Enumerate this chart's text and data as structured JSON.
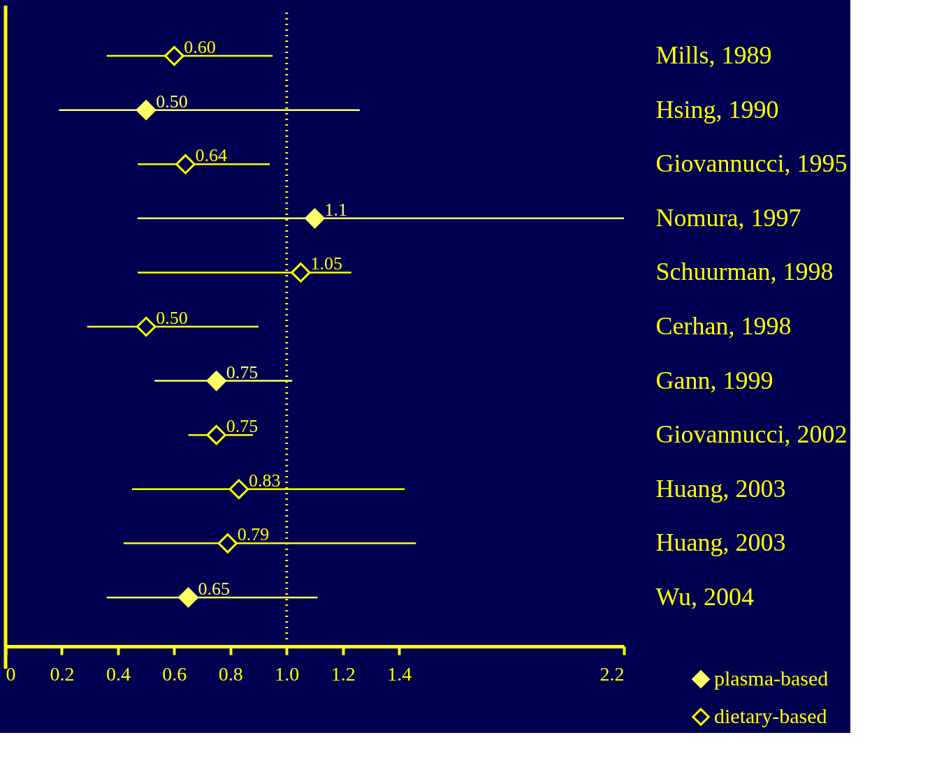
{
  "chart_data": {
    "type": "scatter",
    "orientation": "horizontal",
    "marker": "diamond",
    "legend": "bottom right",
    "grid": false,
    "categories": [
      "Mills, 1989",
      "Hsing, 1990",
      "Giovannucci, 1995",
      "Nomura, 1997",
      "Schuurman, 1998",
      "Cerhan, 1998",
      "Gann, 1999",
      "Giovannucci, 2002",
      "Huang, 2003",
      "Huang, 2003",
      "Wu, 2004"
    ],
    "xlim": [
      0,
      2.2
    ],
    "xticks": [
      0,
      0.2,
      0.4,
      0.6,
      0.8,
      {
        "value": 1,
        "label": "1.0"
      },
      1.2,
      1.4,
      2.2
    ],
    "ref_lines": [
      {
        "axis": "x",
        "value": 1,
        "color": "#ffff00",
        "line_style": "dotted"
      }
    ],
    "series": [
      {
        "name": "plasma-based",
        "color": "#ffff66",
        "values": [
          null,
          0.5,
          null,
          1.1,
          null,
          null,
          0.75,
          null,
          null,
          null,
          0.65
        ],
        "errors": [
          null,
          [
            0.19,
            1.26
          ],
          null,
          [
            0.47,
            2.2
          ],
          null,
          null,
          [
            0.53,
            1.02
          ],
          null,
          null,
          null,
          [
            0.36,
            1.11
          ]
        ],
        "value_labels": [
          null,
          "0.50",
          null,
          "1.1",
          null,
          null,
          "0.75",
          null,
          null,
          null,
          "0.65"
        ]
      },
      {
        "name": "dietary-based",
        "color": "#ffff00",
        "values": [
          0.6,
          null,
          0.64,
          null,
          1.05,
          0.5,
          null,
          0.75,
          0.83,
          0.79,
          null
        ],
        "errors": [
          [
            0.36,
            0.95
          ],
          null,
          [
            0.47,
            0.94
          ],
          null,
          [
            0.47,
            1.23
          ],
          [
            0.29,
            0.9
          ],
          null,
          [
            0.65,
            0.88
          ],
          [
            0.45,
            1.42
          ],
          [
            0.42,
            1.46
          ],
          null
        ],
        "value_labels": [
          "0.60",
          null,
          "0.64",
          null,
          "1.05",
          "0.50",
          null,
          "0.75",
          "0.83",
          "0.79",
          null
        ]
      }
    ]
  }
}
